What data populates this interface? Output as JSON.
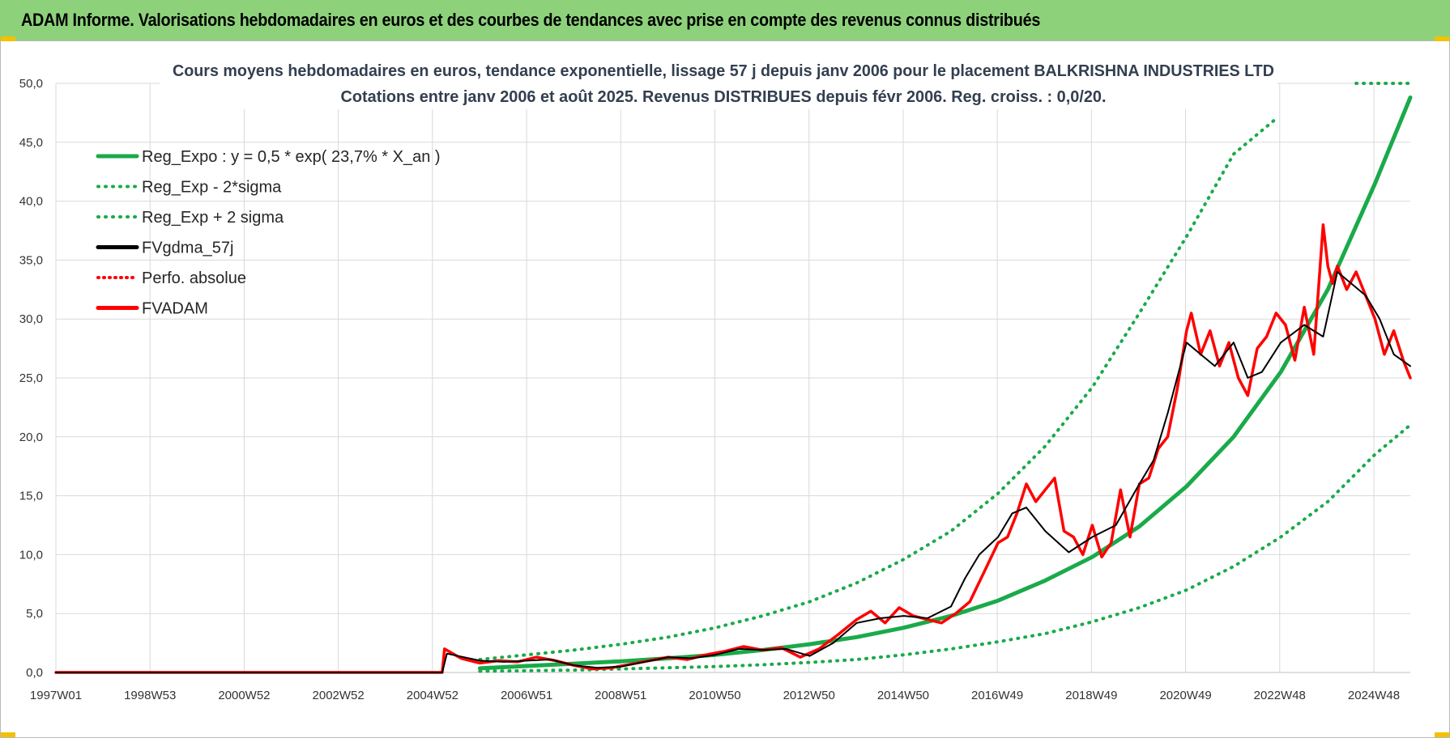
{
  "header": {
    "title": "ADAM Informe. Valorisations hebdomadaires en euros et des courbes de tendances avec prise en compte des revenus connus distribués"
  },
  "colors": {
    "header_bg": "#8dd27b",
    "reg_green": "#1aaa4a",
    "adam_red": "#ff0000",
    "gdma_black": "#000000",
    "grid": "#d9d9d9"
  },
  "chart_data": {
    "type": "line",
    "title_line1": "Cours moyens hebdomadaires en euros, tendance exponentielle, lissage 57 j depuis janv 2006  pour le placement BALKRISHNA INDUSTRIES LTD",
    "title_line2": "Cotations entre janv 2006 et août 2025.  Revenus DISTRIBUES depuis févr 2006.  Reg. croiss. : 0,0/20.",
    "x_ticks": [
      "1997W01",
      "1998W53",
      "2000W52",
      "2002W52",
      "2004W52",
      "2006W51",
      "2008W51",
      "2010W50",
      "2012W50",
      "2014W50",
      "2016W49",
      "2018W49",
      "2020W49",
      "2022W48",
      "2024W48"
    ],
    "x_range": [
      1997.0,
      2025.75
    ],
    "y_ticks": [
      "0,0",
      "5,0",
      "10,0",
      "15,0",
      "20,0",
      "25,0",
      "30,0",
      "35,0",
      "40,0",
      "45,0",
      "50,0"
    ],
    "ylim": [
      0,
      50
    ],
    "grid": true,
    "legend_position": "top-left",
    "legend": [
      {
        "key": "reg_expo",
        "label": "Reg_Expo : y = 0,5 * exp( 23,7% *  X_an )"
      },
      {
        "key": "reg_minus",
        "label": "Reg_Exp - 2*sigma"
      },
      {
        "key": "reg_plus",
        "label": "Reg_Exp + 2 sigma"
      },
      {
        "key": "gdma",
        "label": "FVgdma_57j"
      },
      {
        "key": "perfo",
        "label": "Perfo. absolue"
      },
      {
        "key": "adam",
        "label": "FVADAM"
      }
    ],
    "series": [
      {
        "key": "reg_expo",
        "style": "solid-green",
        "x": [
          2006.0,
          2007,
          2008,
          2009,
          2010,
          2011,
          2012,
          2013,
          2014,
          2015,
          2016,
          2017,
          2018,
          2019,
          2020,
          2021,
          2022,
          2023,
          2024,
          2025,
          2025.75
        ],
        "y": [
          0.35,
          0.55,
          0.75,
          0.95,
          1.2,
          1.5,
          1.9,
          2.4,
          3.0,
          3.8,
          4.8,
          6.1,
          7.8,
          9.8,
          12.4,
          15.8,
          20.0,
          25.5,
          32.5,
          41.5,
          48.8
        ]
      },
      {
        "key": "reg_plus",
        "style": "dotted-green",
        "x": [
          2006.0,
          2007,
          2008,
          2009,
          2010,
          2011,
          2012,
          2013,
          2014,
          2015,
          2016,
          2017,
          2018,
          2019,
          2020,
          2021,
          2022,
          2022.9
        ],
        "y": [
          1.1,
          1.5,
          1.9,
          2.4,
          3.0,
          3.8,
          4.8,
          6.0,
          7.6,
          9.6,
          12.0,
          15.2,
          19.2,
          24.2,
          30.5,
          37.0,
          44.0,
          47.0
        ]
      },
      {
        "key": "reg_plus_cap",
        "style": "dotted-green",
        "x": [
          2024.6,
          2025.75
        ],
        "y": [
          50,
          50
        ]
      },
      {
        "key": "reg_minus",
        "style": "dotted-green",
        "x": [
          2006.0,
          2007,
          2008,
          2009,
          2010,
          2011,
          2012,
          2013,
          2014,
          2015,
          2016,
          2017,
          2018,
          2019,
          2020,
          2021,
          2022,
          2023,
          2024,
          2025,
          2025.75
        ],
        "y": [
          0.1,
          0.15,
          0.2,
          0.3,
          0.4,
          0.5,
          0.65,
          0.85,
          1.1,
          1.5,
          2.0,
          2.6,
          3.3,
          4.3,
          5.5,
          7.0,
          9.0,
          11.5,
          14.5,
          18.5,
          21.0
        ]
      },
      {
        "key": "gdma",
        "style": "solid-black",
        "x": [
          1997.0,
          2005.2,
          2005.3,
          2006,
          2006.5,
          2007,
          2007.5,
          2008,
          2008.5,
          2009,
          2009.5,
          2010,
          2010.5,
          2011,
          2011.5,
          2012,
          2012.5,
          2013,
          2013.5,
          2014,
          2014.5,
          2015,
          2015.5,
          2016,
          2016.3,
          2016.6,
          2017,
          2017.3,
          2017.6,
          2018,
          2018.5,
          2019,
          2019.5,
          2020,
          2020.3,
          2020.6,
          2021,
          2021.3,
          2021.6,
          2022,
          2022.3,
          2022.6,
          2023,
          2023.5,
          2023.9,
          2024.2,
          2024.5,
          2024.8,
          2025.1,
          2025.4,
          2025.75
        ],
        "y": [
          0,
          0,
          1.6,
          1.0,
          0.9,
          1.0,
          1.1,
          0.6,
          0.4,
          0.5,
          0.9,
          1.3,
          1.2,
          1.5,
          2.0,
          1.9,
          2.0,
          1.4,
          2.5,
          4.2,
          4.6,
          4.8,
          4.6,
          5.6,
          8.0,
          10.0,
          11.5,
          13.5,
          14.0,
          12.0,
          10.2,
          11.5,
          12.5,
          16.0,
          18.0,
          22.0,
          28.0,
          27.0,
          26.0,
          28.0,
          25.0,
          25.5,
          28.0,
          29.5,
          28.5,
          34.0,
          33.0,
          32.0,
          30.0,
          27.0,
          26.0
        ]
      },
      {
        "key": "adam",
        "style": "solid-red",
        "x": [
          1997.0,
          2005.2,
          2005.25,
          2005.6,
          2006,
          2006.4,
          2006.8,
          2007.2,
          2007.6,
          2008,
          2008.4,
          2008.8,
          2009.2,
          2009.6,
          2010,
          2010.4,
          2010.8,
          2011.2,
          2011.6,
          2012,
          2012.4,
          2012.8,
          2013.2,
          2013.6,
          2014,
          2014.3,
          2014.6,
          2014.9,
          2015.2,
          2015.5,
          2015.8,
          2016.1,
          2016.4,
          2016.7,
          2017,
          2017.2,
          2017.4,
          2017.6,
          2017.8,
          2018,
          2018.2,
          2018.4,
          2018.6,
          2018.8,
          2019,
          2019.2,
          2019.4,
          2019.6,
          2019.8,
          2020,
          2020.2,
          2020.4,
          2020.6,
          2020.8,
          2021,
          2021.1,
          2021.3,
          2021.5,
          2021.7,
          2021.9,
          2022.1,
          2022.3,
          2022.5,
          2022.7,
          2022.9,
          2023.1,
          2023.3,
          2023.5,
          2023.7,
          2023.9,
          2024.0,
          2024.1,
          2024.2,
          2024.4,
          2024.6,
          2024.8,
          2025.0,
          2025.2,
          2025.4,
          2025.6,
          2025.75
        ],
        "y": [
          0,
          0,
          2.0,
          1.2,
          0.8,
          1.0,
          0.9,
          1.3,
          1.0,
          0.6,
          0.3,
          0.4,
          0.7,
          1.0,
          1.3,
          1.1,
          1.5,
          1.8,
          2.2,
          1.9,
          2.1,
          1.3,
          2.0,
          3.2,
          4.5,
          5.2,
          4.2,
          5.5,
          4.8,
          4.5,
          4.2,
          5.0,
          6.0,
          8.5,
          11.0,
          11.5,
          13.5,
          16.0,
          14.5,
          15.5,
          16.5,
          12.0,
          11.5,
          10.0,
          12.5,
          9.8,
          11.0,
          15.5,
          11.5,
          16.0,
          16.5,
          19.0,
          20.0,
          24.0,
          29.0,
          30.5,
          27.0,
          29.0,
          26.0,
          28.0,
          25.0,
          23.5,
          27.5,
          28.5,
          30.5,
          29.5,
          26.5,
          31.0,
          27.0,
          38.0,
          34.5,
          33.0,
          34.5,
          32.5,
          34.0,
          32.0,
          30.0,
          27.0,
          29.0,
          26.5,
          25.0
        ]
      }
    ]
  }
}
